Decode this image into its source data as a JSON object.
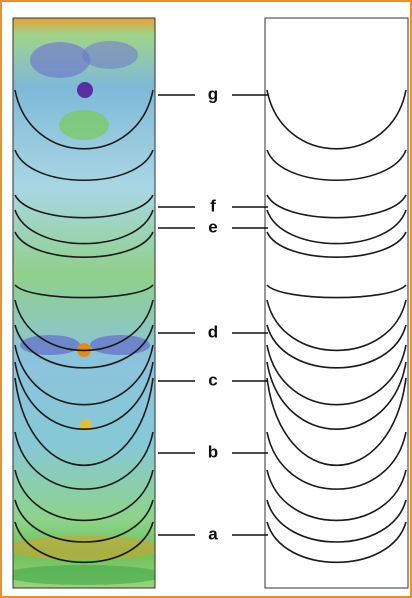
{
  "labels": [
    "g",
    "f",
    "e",
    "d",
    "c",
    "b",
    "a"
  ]
}
